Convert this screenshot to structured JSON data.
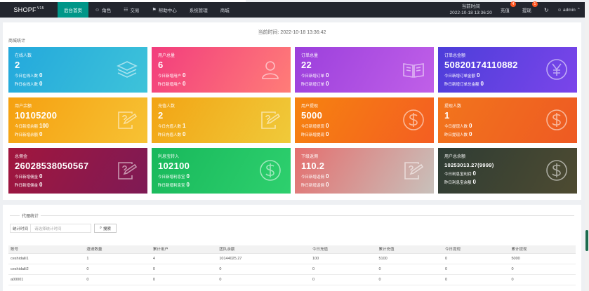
{
  "header": {
    "logo": "SHOPF",
    "logo_version": "V15",
    "nav": [
      {
        "label": "后台首页",
        "icon": "",
        "active": true
      },
      {
        "label": "角色",
        "icon": "person-icon",
        "active": false
      },
      {
        "label": "交易",
        "icon": "trade-icon",
        "active": false
      },
      {
        "label": "帮助中心",
        "icon": "flag-icon",
        "active": false
      },
      {
        "label": "系统管理",
        "icon": "",
        "active": false
      },
      {
        "label": "商城",
        "icon": "",
        "active": false
      }
    ],
    "time_label": "当前时间",
    "time_value": "2022-10-18 13:36:20",
    "recharge": {
      "label": "充值",
      "badge": "4"
    },
    "withdraw": {
      "label": "提现",
      "badge": "1"
    },
    "user": "admin"
  },
  "panel": {
    "current_time": "当前时间:  2022-10-18 13:36:42",
    "subtitle": "商城统计"
  },
  "cards": [
    {
      "title": "在线人数",
      "value": "2",
      "l1": "今日在线人数",
      "v1": "0",
      "l2": "昨日在线人数",
      "v2": "0",
      "icon": "layers",
      "bg": "linear-gradient(120deg,#23a8dc,#3ec3d9)"
    },
    {
      "title": "用户总量",
      "value": "6",
      "l1": "今日新增用户",
      "v1": "0",
      "l2": "昨日新增用户",
      "v2": "0",
      "icon": "user",
      "bg": "linear-gradient(120deg,#f23d7d,#ff7d78)"
    },
    {
      "title": "订单总量",
      "value": "22",
      "l1": "今日新增订单",
      "v1": "0",
      "l2": "昨日新增订单",
      "v2": "0",
      "icon": "book",
      "bg": "linear-gradient(120deg,#9b3fdc,#c060e8)"
    },
    {
      "title": "订单总金额",
      "value": "50820174110882",
      "l1": "今日新增订单金额",
      "v1": "0",
      "l2": "昨日新增订单总金额",
      "v2": "0",
      "icon": "yen",
      "bg": "linear-gradient(120deg,#4c3ed9,#7b45ea)"
    },
    {
      "title": "用户余额",
      "value": "10105200",
      "l1": "今日新增余额",
      "v1": "100",
      "l2": "昨日新增余额",
      "v2": "0",
      "icon": "edit",
      "bg": "linear-gradient(120deg,#f5a010,#f7c234)"
    },
    {
      "title": "充值人数",
      "value": "2",
      "l1": "今日充值人数",
      "v1": "1",
      "l2": "昨日充值人数",
      "v2": "0",
      "icon": "edit",
      "bg": "linear-gradient(120deg,#f2a414,#f0ca3a)"
    },
    {
      "title": "用户提现",
      "value": "5000",
      "l1": "今日新增提现",
      "v1": "0",
      "l2": "昨日新增提现",
      "v2": "0",
      "icon": "dollar",
      "bg": "linear-gradient(120deg,#f6830f,#f45e22)"
    },
    {
      "title": "提现人数",
      "value": "1",
      "l1": "今日提现人数",
      "v1": "0",
      "l2": "昨日提现人数",
      "v2": "0",
      "icon": "dollar",
      "bg": "linear-gradient(120deg,#f2751c,#ee5a23)"
    },
    {
      "title": "总佣金",
      "value": "26028538050567",
      "l1": "今日新增佣金",
      "v1": "0",
      "l2": "昨日新增佣金",
      "v2": "0",
      "icon": "edit",
      "bg": "linear-gradient(120deg,#a1163d,#7e1a55)"
    },
    {
      "title": "利息宝转入",
      "value": "102100",
      "l1": "今日新增利息宝",
      "v1": "0",
      "l2": "昨日新增利息宝",
      "v2": "0",
      "icon": "dollar",
      "bg": "linear-gradient(120deg,#18b85b,#2ed06e)"
    },
    {
      "title": "下级返佣",
      "value": "110.2",
      "l1": "今日新增返佣",
      "v1": "0",
      "l2": "昨日新增返佣",
      "v2": "0",
      "icon": "edit",
      "bg": "linear-gradient(120deg,#e46f6f,#c8c1bb)"
    },
    {
      "title": "用户总余额",
      "value": "10253013.27(9999)",
      "small": true,
      "l1": "今日利息宝利润",
      "v1": "0",
      "l2": "昨日利息宝余额",
      "v2": "0",
      "icon": "dollar",
      "bg": "linear-gradient(120deg,#2e3c34,#4e4b31)"
    }
  ],
  "agent": {
    "legend": "代理统计",
    "filter_label": "统计时间",
    "filter_placeholder": "请选择统计时间",
    "search_label": "搜索",
    "columns": [
      "账号",
      "邀请数量",
      "累计用户",
      "团队余额",
      "今日充值",
      "累计充值",
      "今日提现",
      "累计提现"
    ],
    "rows": [
      [
        "ceshidaili1",
        "1",
        "4",
        "10144025.27",
        "100",
        "5100",
        "0",
        "5000"
      ],
      [
        "ceshidaili2",
        "0",
        "0",
        "0",
        "0",
        "0",
        "0",
        "0"
      ],
      [
        "a00001",
        "0",
        "0",
        "0",
        "0",
        "0",
        "0",
        "0"
      ]
    ]
  }
}
